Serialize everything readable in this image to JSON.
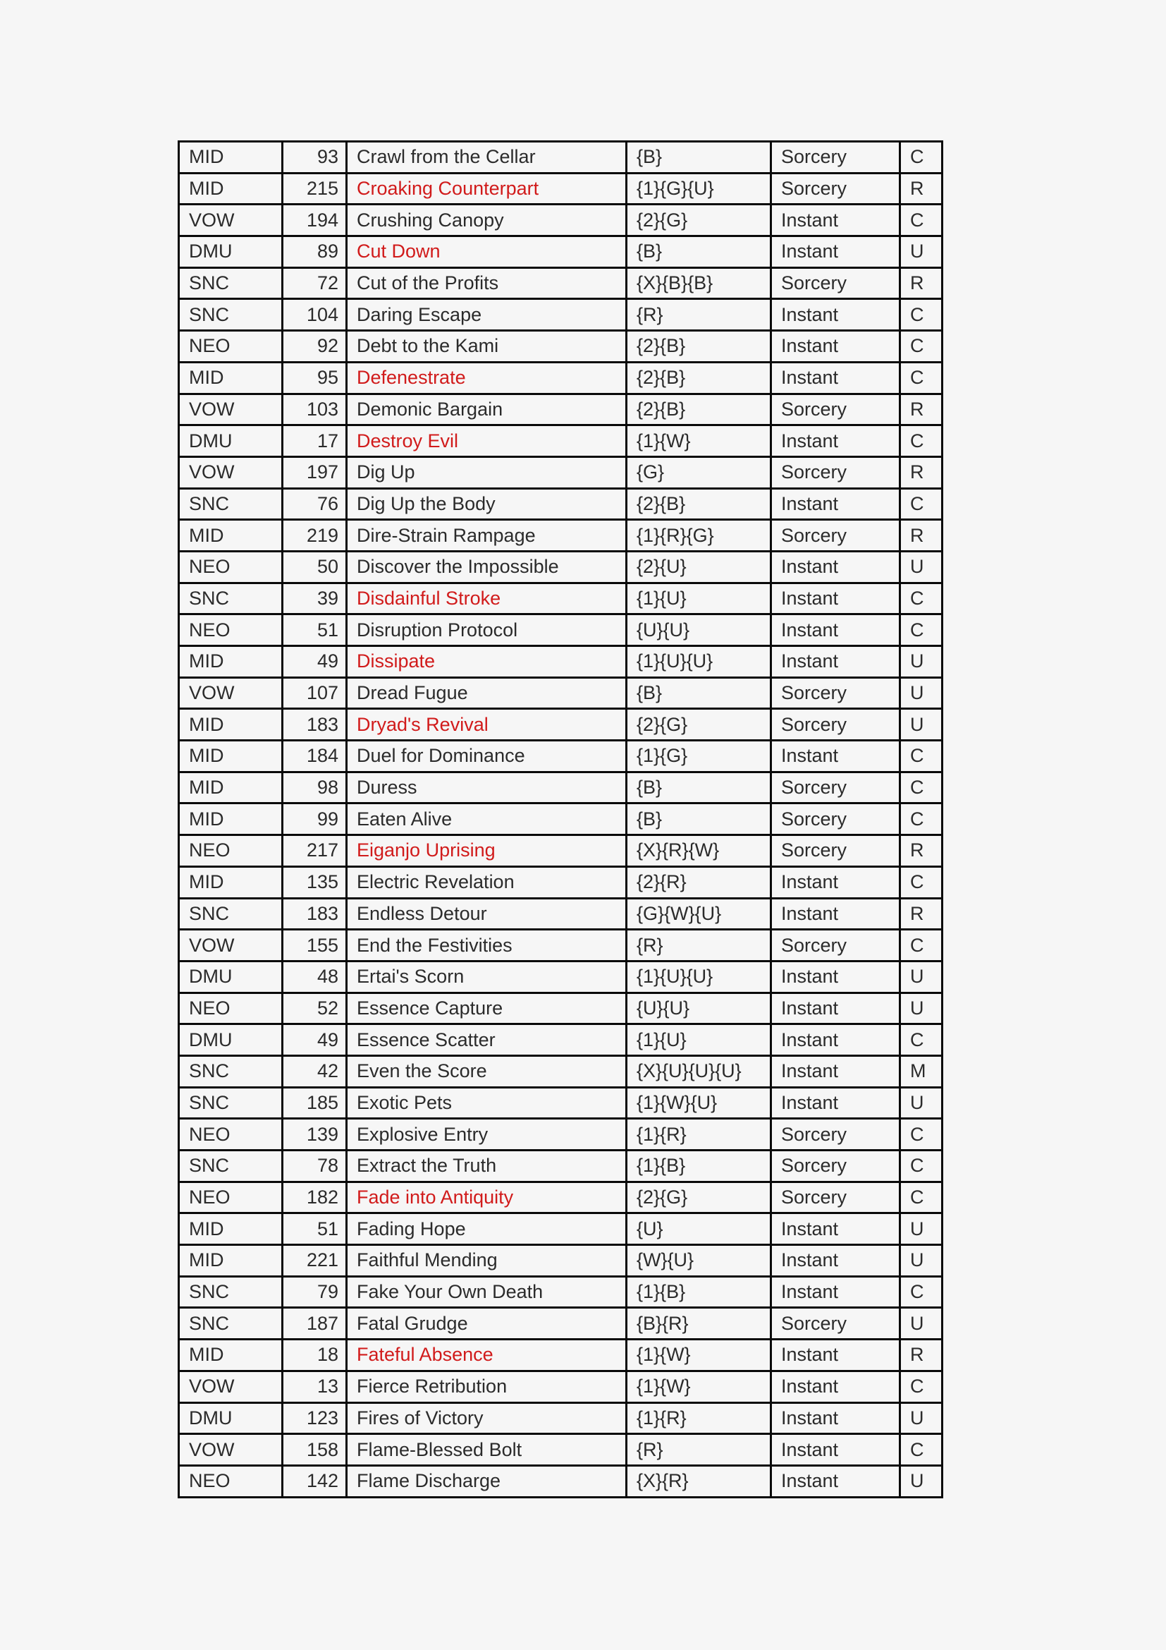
{
  "page": {
    "background": "#f6f6f6"
  },
  "table": {
    "colors": {
      "text": "#2b2b2b",
      "highlight": "#d11b1b",
      "border": "#0a0a0a",
      "cell_background": "#f6f6f6"
    },
    "columns": [
      {
        "key": "set"
      },
      {
        "key": "number"
      },
      {
        "key": "name"
      },
      {
        "key": "cost"
      },
      {
        "key": "type"
      },
      {
        "key": "rarity"
      }
    ],
    "rows": [
      {
        "set": "MID",
        "number": "93",
        "name": "Crawl from the Cellar",
        "cost": "{B}",
        "type": "Sorcery",
        "rarity": "C",
        "name_color": "black"
      },
      {
        "set": "MID",
        "number": "215",
        "name": "Croaking Counterpart",
        "cost": "{1}{G}{U}",
        "type": "Sorcery",
        "rarity": "R",
        "name_color": "red"
      },
      {
        "set": "VOW",
        "number": "194",
        "name": "Crushing Canopy",
        "cost": "{2}{G}",
        "type": "Instant",
        "rarity": "C",
        "name_color": "black"
      },
      {
        "set": "DMU",
        "number": "89",
        "name": "Cut Down",
        "cost": "{B}",
        "type": "Instant",
        "rarity": "U",
        "name_color": "red"
      },
      {
        "set": "SNC",
        "number": "72",
        "name": "Cut of the Profits",
        "cost": "{X}{B}{B}",
        "type": "Sorcery",
        "rarity": "R",
        "name_color": "black"
      },
      {
        "set": "SNC",
        "number": "104",
        "name": "Daring Escape",
        "cost": "{R}",
        "type": "Instant",
        "rarity": "C",
        "name_color": "black"
      },
      {
        "set": "NEO",
        "number": "92",
        "name": "Debt to the Kami",
        "cost": "{2}{B}",
        "type": "Instant",
        "rarity": "C",
        "name_color": "black"
      },
      {
        "set": "MID",
        "number": "95",
        "name": "Defenestrate",
        "cost": "{2}{B}",
        "type": "Instant",
        "rarity": "C",
        "name_color": "red"
      },
      {
        "set": "VOW",
        "number": "103",
        "name": "Demonic Bargain",
        "cost": "{2}{B}",
        "type": "Sorcery",
        "rarity": "R",
        "name_color": "black"
      },
      {
        "set": "DMU",
        "number": "17",
        "name": "Destroy Evil",
        "cost": "{1}{W}",
        "type": "Instant",
        "rarity": "C",
        "name_color": "red"
      },
      {
        "set": "VOW",
        "number": "197",
        "name": "Dig Up",
        "cost": "{G}",
        "type": "Sorcery",
        "rarity": "R",
        "name_color": "black"
      },
      {
        "set": "SNC",
        "number": "76",
        "name": "Dig Up the Body",
        "cost": "{2}{B}",
        "type": "Instant",
        "rarity": "C",
        "name_color": "black"
      },
      {
        "set": "MID",
        "number": "219",
        "name": "Dire-Strain Rampage",
        "cost": "{1}{R}{G}",
        "type": "Sorcery",
        "rarity": "R",
        "name_color": "black"
      },
      {
        "set": "NEO",
        "number": "50",
        "name": "Discover the Impossible",
        "cost": "{2}{U}",
        "type": "Instant",
        "rarity": "U",
        "name_color": "black"
      },
      {
        "set": "SNC",
        "number": "39",
        "name": "Disdainful Stroke",
        "cost": "{1}{U}",
        "type": "Instant",
        "rarity": "C",
        "name_color": "red"
      },
      {
        "set": "NEO",
        "number": "51",
        "name": "Disruption Protocol",
        "cost": "{U}{U}",
        "type": "Instant",
        "rarity": "C",
        "name_color": "black"
      },
      {
        "set": "MID",
        "number": "49",
        "name": "Dissipate",
        "cost": "{1}{U}{U}",
        "type": "Instant",
        "rarity": "U",
        "name_color": "red"
      },
      {
        "set": "VOW",
        "number": "107",
        "name": "Dread Fugue",
        "cost": "{B}",
        "type": "Sorcery",
        "rarity": "U",
        "name_color": "black"
      },
      {
        "set": "MID",
        "number": "183",
        "name": "Dryad's Revival",
        "cost": "{2}{G}",
        "type": "Sorcery",
        "rarity": "U",
        "name_color": "red"
      },
      {
        "set": "MID",
        "number": "184",
        "name": "Duel for Dominance",
        "cost": "{1}{G}",
        "type": "Instant",
        "rarity": "C",
        "name_color": "black"
      },
      {
        "set": "MID",
        "number": "98",
        "name": "Duress",
        "cost": "{B}",
        "type": "Sorcery",
        "rarity": "C",
        "name_color": "black"
      },
      {
        "set": "MID",
        "number": "99",
        "name": "Eaten Alive",
        "cost": "{B}",
        "type": "Sorcery",
        "rarity": "C",
        "name_color": "black"
      },
      {
        "set": "NEO",
        "number": "217",
        "name": "Eiganjo Uprising",
        "cost": "{X}{R}{W}",
        "type": "Sorcery",
        "rarity": "R",
        "name_color": "red"
      },
      {
        "set": "MID",
        "number": "135",
        "name": "Electric Revelation",
        "cost": "{2}{R}",
        "type": "Instant",
        "rarity": "C",
        "name_color": "black"
      },
      {
        "set": "SNC",
        "number": "183",
        "name": "Endless Detour",
        "cost": "{G}{W}{U}",
        "type": "Instant",
        "rarity": "R",
        "name_color": "black"
      },
      {
        "set": "VOW",
        "number": "155",
        "name": "End the Festivities",
        "cost": "{R}",
        "type": "Sorcery",
        "rarity": "C",
        "name_color": "black"
      },
      {
        "set": "DMU",
        "number": "48",
        "name": "Ertai's Scorn",
        "cost": "{1}{U}{U}",
        "type": "Instant",
        "rarity": "U",
        "name_color": "black"
      },
      {
        "set": "NEO",
        "number": "52",
        "name": "Essence Capture",
        "cost": "{U}{U}",
        "type": "Instant",
        "rarity": "U",
        "name_color": "black"
      },
      {
        "set": "DMU",
        "number": "49",
        "name": "Essence Scatter",
        "cost": "{1}{U}",
        "type": "Instant",
        "rarity": "C",
        "name_color": "black"
      },
      {
        "set": "SNC",
        "number": "42",
        "name": "Even the Score",
        "cost": "{X}{U}{U}{U}",
        "type": "Instant",
        "rarity": "M",
        "name_color": "black"
      },
      {
        "set": "SNC",
        "number": "185",
        "name": "Exotic Pets",
        "cost": "{1}{W}{U}",
        "type": "Instant",
        "rarity": "U",
        "name_color": "black"
      },
      {
        "set": "NEO",
        "number": "139",
        "name": "Explosive Entry",
        "cost": "{1}{R}",
        "type": "Sorcery",
        "rarity": "C",
        "name_color": "black"
      },
      {
        "set": "SNC",
        "number": "78",
        "name": "Extract the Truth",
        "cost": "{1}{B}",
        "type": "Sorcery",
        "rarity": "C",
        "name_color": "black"
      },
      {
        "set": "NEO",
        "number": "182",
        "name": "Fade into Antiquity",
        "cost": "{2}{G}",
        "type": "Sorcery",
        "rarity": "C",
        "name_color": "red"
      },
      {
        "set": "MID",
        "number": "51",
        "name": "Fading Hope",
        "cost": "{U}",
        "type": "Instant",
        "rarity": "U",
        "name_color": "black"
      },
      {
        "set": "MID",
        "number": "221",
        "name": "Faithful Mending",
        "cost": "{W}{U}",
        "type": "Instant",
        "rarity": "U",
        "name_color": "black"
      },
      {
        "set": "SNC",
        "number": "79",
        "name": "Fake Your Own Death",
        "cost": "{1}{B}",
        "type": "Instant",
        "rarity": "C",
        "name_color": "black"
      },
      {
        "set": "SNC",
        "number": "187",
        "name": "Fatal Grudge",
        "cost": "{B}{R}",
        "type": "Sorcery",
        "rarity": "U",
        "name_color": "black"
      },
      {
        "set": "MID",
        "number": "18",
        "name": "Fateful Absence",
        "cost": "{1}{W}",
        "type": "Instant",
        "rarity": "R",
        "name_color": "red"
      },
      {
        "set": "VOW",
        "number": "13",
        "name": "Fierce Retribution",
        "cost": "{1}{W}",
        "type": "Instant",
        "rarity": "C",
        "name_color": "black"
      },
      {
        "set": "DMU",
        "number": "123",
        "name": "Fires of Victory",
        "cost": "{1}{R}",
        "type": "Instant",
        "rarity": "U",
        "name_color": "black"
      },
      {
        "set": "VOW",
        "number": "158",
        "name": "Flame-Blessed Bolt",
        "cost": "{R}",
        "type": "Instant",
        "rarity": "C",
        "name_color": "black"
      },
      {
        "set": "NEO",
        "number": "142",
        "name": "Flame Discharge",
        "cost": "{X}{R}",
        "type": "Instant",
        "rarity": "U",
        "name_color": "black"
      }
    ]
  }
}
